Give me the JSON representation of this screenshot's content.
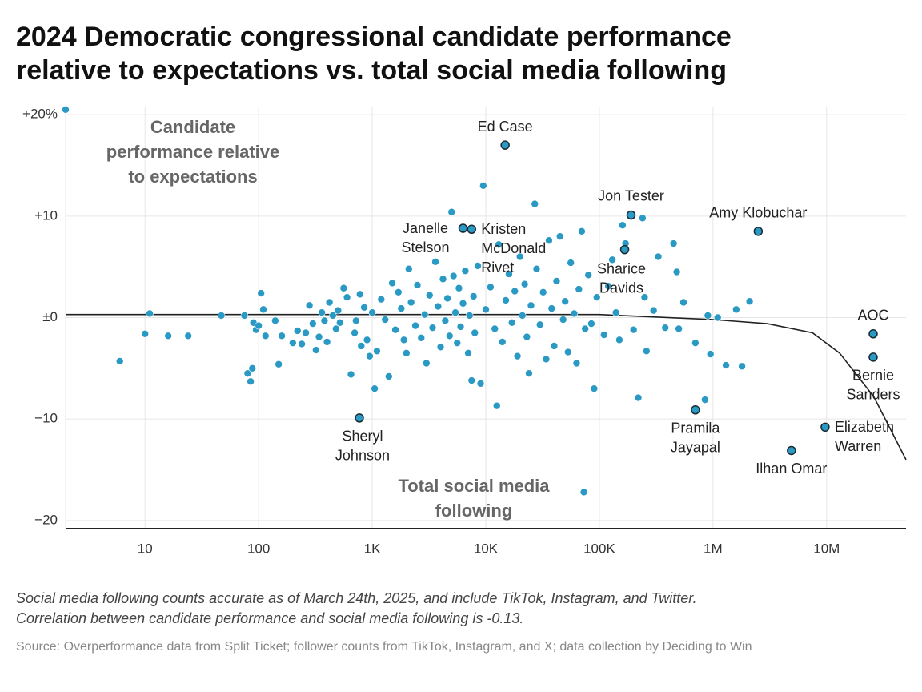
{
  "chart_data": {
    "type": "scatter",
    "title_lines": [
      "2024 Democratic congressional candidate performance",
      "relative to expectations vs. total social media following"
    ],
    "y_label_lines": [
      "Candidate",
      "performance relative",
      "to expectations"
    ],
    "x_label_lines": [
      "Total social media",
      "following"
    ],
    "x_scale": "log",
    "xlim": [
      2,
      50000000
    ],
    "ylim": [
      -20.8,
      20.8
    ],
    "xticks": [
      10,
      100,
      {
        "value": 1000,
        "label": "1K"
      },
      {
        "value": 10000,
        "label": "10K"
      },
      {
        "value": 100000,
        "label": "100K"
      },
      {
        "value": 1000000,
        "label": "1M"
      },
      {
        "value": 10000000,
        "label": "10M"
      }
    ],
    "yticks": [
      {
        "value": 20,
        "label": "+20%"
      },
      {
        "value": 10,
        "label": "+10"
      },
      {
        "value": 0,
        "label": "±0"
      },
      {
        "value": -10,
        "label": "−10"
      },
      {
        "value": -20,
        "label": "−20"
      }
    ],
    "grid": true,
    "color": "#2a9ac4",
    "points": [
      [
        2,
        20.5
      ],
      [
        6,
        -4.3
      ],
      [
        10,
        -1.6
      ],
      [
        11,
        0.4
      ],
      [
        16,
        -1.8
      ],
      [
        24,
        -1.8
      ],
      [
        47,
        0.2
      ],
      [
        75,
        0.2
      ],
      [
        80,
        -5.5
      ],
      [
        85,
        -6.3
      ],
      [
        88,
        -5
      ],
      [
        90,
        -0.5
      ],
      [
        95,
        -1.2
      ],
      [
        100,
        -0.8
      ],
      [
        105,
        2.4
      ],
      [
        110,
        0.8
      ],
      [
        115,
        -1.8
      ],
      [
        140,
        -0.3
      ],
      [
        150,
        -4.6
      ],
      [
        160,
        -1.8
      ],
      [
        200,
        -2.5
      ],
      [
        220,
        -1.3
      ],
      [
        240,
        -2.6
      ],
      [
        260,
        -1.5
      ],
      [
        280,
        1.2
      ],
      [
        300,
        -0.6
      ],
      [
        320,
        -3.2
      ],
      [
        340,
        -1.9
      ],
      [
        360,
        0.5
      ],
      [
        380,
        -0.3
      ],
      [
        400,
        -2.4
      ],
      [
        420,
        1.5
      ],
      [
        450,
        0.2
      ],
      [
        480,
        -1.1
      ],
      [
        500,
        0.7
      ],
      [
        520,
        -0.5
      ],
      [
        560,
        2.9
      ],
      [
        600,
        2.0
      ],
      [
        650,
        -5.6
      ],
      [
        700,
        -1.5
      ],
      [
        720,
        -0.3
      ],
      [
        780,
        2.3
      ],
      [
        800,
        -2.8
      ],
      [
        850,
        1.0
      ],
      [
        900,
        -2.2
      ],
      [
        950,
        -3.8
      ],
      [
        1000,
        0.5
      ],
      [
        1050,
        -7
      ],
      [
        1100,
        -3.3
      ],
      [
        1200,
        1.8
      ],
      [
        1300,
        -0.2
      ],
      [
        1400,
        -5.8
      ],
      [
        1500,
        3.4
      ],
      [
        1600,
        -1.2
      ],
      [
        1700,
        2.5
      ],
      [
        1800,
        0.9
      ],
      [
        1900,
        -2.2
      ],
      [
        2000,
        -3.5
      ],
      [
        2100,
        4.8
      ],
      [
        2200,
        1.5
      ],
      [
        2400,
        -0.8
      ],
      [
        2500,
        3.2
      ],
      [
        2700,
        -2.0
      ],
      [
        2900,
        0.3
      ],
      [
        3000,
        -4.5
      ],
      [
        3200,
        2.2
      ],
      [
        3400,
        -1.0
      ],
      [
        3600,
        5.5
      ],
      [
        3800,
        1.1
      ],
      [
        4000,
        -2.9
      ],
      [
        4200,
        3.8
      ],
      [
        4400,
        -0.3
      ],
      [
        4600,
        1.9
      ],
      [
        4800,
        -1.8
      ],
      [
        5000,
        10.4
      ],
      [
        5200,
        4.1
      ],
      [
        5400,
        0.5
      ],
      [
        5600,
        -2.5
      ],
      [
        5800,
        2.9
      ],
      [
        6000,
        -0.9
      ],
      [
        6300,
        1.4
      ],
      [
        6600,
        4.6
      ],
      [
        7000,
        -3.5
      ],
      [
        7200,
        0.2
      ],
      [
        7500,
        -6.2
      ],
      [
        7800,
        2.1
      ],
      [
        8000,
        -1.5
      ],
      [
        8500,
        5.1
      ],
      [
        9000,
        -6.5
      ],
      [
        9500,
        13
      ],
      [
        10000,
        0.8
      ],
      [
        11000,
        3.0
      ],
      [
        12000,
        -1.1
      ],
      [
        12500,
        -8.7
      ],
      [
        13000,
        7.2
      ],
      [
        14000,
        -2.4
      ],
      [
        15000,
        1.7
      ],
      [
        16000,
        4.3
      ],
      [
        17000,
        -0.5
      ],
      [
        18000,
        2.6
      ],
      [
        19000,
        -3.8
      ],
      [
        20000,
        6.0
      ],
      [
        21000,
        0.2
      ],
      [
        22000,
        3.3
      ],
      [
        23000,
        -1.9
      ],
      [
        24000,
        -5.5
      ],
      [
        25000,
        1.2
      ],
      [
        27000,
        11.2
      ],
      [
        28000,
        4.8
      ],
      [
        30000,
        -0.7
      ],
      [
        32000,
        2.5
      ],
      [
        34000,
        -4.1
      ],
      [
        36000,
        7.6
      ],
      [
        38000,
        0.9
      ],
      [
        40000,
        -2.8
      ],
      [
        42000,
        3.6
      ],
      [
        45000,
        8.0
      ],
      [
        48000,
        -0.2
      ],
      [
        50000,
        1.6
      ],
      [
        53000,
        -3.4
      ],
      [
        56000,
        5.4
      ],
      [
        60000,
        0.4
      ],
      [
        63000,
        -4.5
      ],
      [
        66000,
        2.8
      ],
      [
        70000,
        8.5
      ],
      [
        73000,
        -17.2
      ],
      [
        75000,
        -1.1
      ],
      [
        80000,
        4.2
      ],
      [
        85000,
        -0.6
      ],
      [
        90000,
        -7.0
      ],
      [
        95000,
        2.0
      ],
      [
        110000,
        -1.7
      ],
      [
        120000,
        3.1
      ],
      [
        130000,
        5.7
      ],
      [
        140000,
        0.5
      ],
      [
        150000,
        -2.2
      ],
      [
        160000,
        9.1
      ],
      [
        170000,
        7.3
      ],
      [
        200000,
        -1.2
      ],
      [
        220000,
        -7.9
      ],
      [
        240000,
        9.8
      ],
      [
        250000,
        2.0
      ],
      [
        260000,
        -3.3
      ],
      [
        300000,
        0.7
      ],
      [
        330000,
        6.0
      ],
      [
        380000,
        -1.0
      ],
      [
        450000,
        7.3
      ],
      [
        480000,
        4.5
      ],
      [
        500000,
        -1.1
      ],
      [
        550000,
        1.5
      ],
      [
        700000,
        -2.5
      ],
      [
        850000,
        -8.1
      ],
      [
        900000,
        0.2
      ],
      [
        950000,
        -3.6
      ],
      [
        1100000,
        0.0
      ],
      [
        1300000,
        -4.7
      ],
      [
        1600000,
        0.8
      ],
      [
        1800000,
        -4.8
      ],
      [
        2100000,
        1.6
      ]
    ],
    "labeled": [
      {
        "label_lines": [
          "Ed Case"
        ],
        "x": 14800,
        "y": 17.0
      },
      {
        "label_lines": [
          "Jon Tester"
        ],
        "x": 190000,
        "y": 10.1
      },
      {
        "label_lines": [
          "Amy Klobuchar"
        ],
        "x": 2500000,
        "y": 8.5
      },
      {
        "label_lines": [
          "Janelle",
          "Stelson"
        ],
        "x": 6300,
        "y": 8.8
      },
      {
        "label_lines": [
          "Kristen",
          "McDonald",
          "Rivet"
        ],
        "x": 7500,
        "y": 8.7
      },
      {
        "label_lines": [
          "Sharice",
          "Davids"
        ],
        "x": 167000,
        "y": 6.7
      },
      {
        "label_lines": [
          "AOC"
        ],
        "x": 25700000,
        "y": -1.6
      },
      {
        "label_lines": [
          "Bernie",
          "Sanders"
        ],
        "x": 25700000,
        "y": -3.9
      },
      {
        "label_lines": [
          "Elizabeth",
          "Warren"
        ],
        "x": 9700000,
        "y": -10.8
      },
      {
        "label_lines": [
          "Ilhan Omar"
        ],
        "x": 4900000,
        "y": -13.1
      },
      {
        "label_lines": [
          "Pramila",
          "Jayapal"
        ],
        "x": 700000,
        "y": -9.1
      },
      {
        "label_lines": [
          "Sheryl",
          "Johnson"
        ],
        "x": 770,
        "y": -9.9
      }
    ],
    "trend": {
      "x": [
        2,
        100000,
        1000000,
        3000000,
        7500000,
        13000000,
        26000000,
        50000000
      ],
      "y": [
        0.3,
        0.3,
        -0.2,
        -0.6,
        -1.5,
        -3.5,
        -7.8,
        -14
      ]
    },
    "notes": [
      "Social media following counts accurate as of March 24th, 2025, and include TikTok, Instagram, and Twitter.",
      "Correlation between candidate performance and social media following is -0.13."
    ],
    "source": "Source: Overperformance data from Split Ticket; follower counts from TikTok, Instagram, and X; data collection by Deciding to Win"
  }
}
